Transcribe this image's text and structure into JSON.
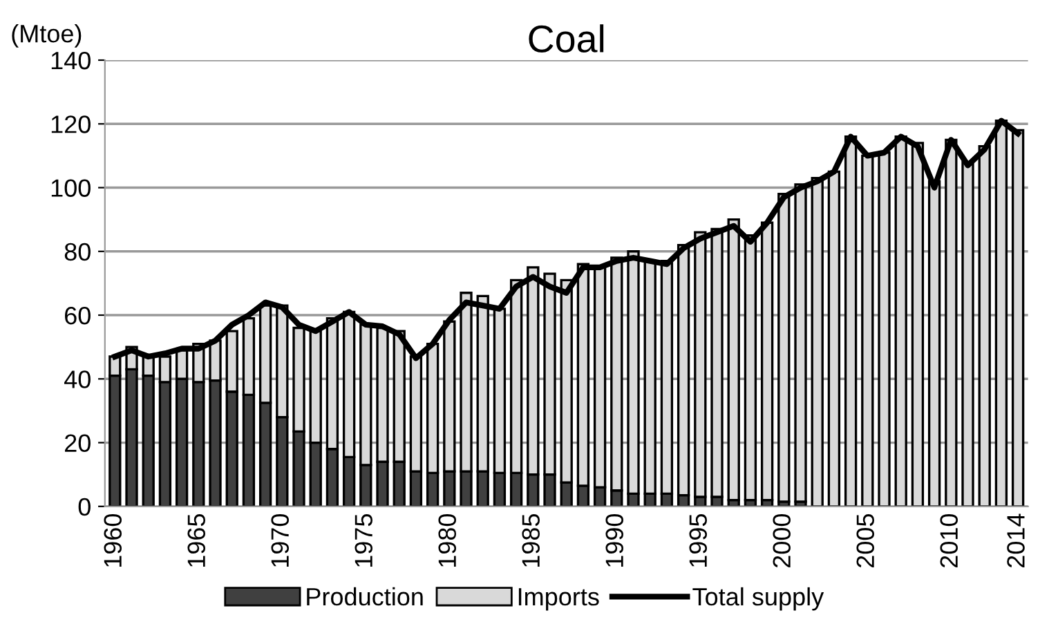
{
  "chart_data": {
    "type": "bar",
    "title": "Coal",
    "ylabel": "(Mtoe)",
    "stacked": true,
    "categories": [
      "1960",
      null,
      null,
      null,
      null,
      "1965",
      null,
      null,
      null,
      null,
      "1970",
      null,
      null,
      null,
      null,
      "1975",
      null,
      null,
      null,
      null,
      "1980",
      null,
      null,
      null,
      null,
      "1985",
      null,
      null,
      null,
      null,
      "1990",
      null,
      null,
      null,
      null,
      "1995",
      null,
      null,
      null,
      null,
      "2000",
      null,
      null,
      null,
      null,
      "2005",
      null,
      null,
      null,
      null,
      "2010",
      null,
      null,
      null,
      "2014"
    ],
    "series": [
      {
        "name": "Production",
        "color": "#404040",
        "values": [
          41,
          43,
          41,
          39,
          40,
          39,
          39.5,
          36,
          35,
          32.5,
          28,
          23.5,
          20,
          18,
          15.5,
          13,
          14,
          14,
          11,
          10.5,
          11,
          11,
          11,
          10.5,
          10.5,
          10,
          10,
          7.5,
          6.5,
          6,
          5,
          4,
          4,
          4,
          3.5,
          3,
          3,
          2,
          2,
          2,
          1.5,
          1.5,
          0,
          0,
          0,
          0,
          0,
          0,
          0,
          0,
          0,
          0,
          0,
          0,
          0
        ]
      },
      {
        "name": "Imports",
        "color": "#d9d9d9",
        "values": [
          6,
          7,
          6,
          8,
          9,
          12,
          12.5,
          19,
          24,
          30.5,
          35,
          32.5,
          35,
          41,
          45.5,
          44,
          42,
          41,
          36,
          40.5,
          47,
          56,
          55,
          51.5,
          60.5,
          65,
          63,
          63.5,
          69.5,
          69,
          73,
          76,
          73,
          73,
          78.5,
          83,
          84,
          88,
          83,
          87,
          96.5,
          99.5,
          103,
          105,
          116,
          110,
          111,
          116,
          114,
          102,
          115,
          108,
          113,
          121,
          118
        ]
      },
      {
        "name": "Total supply",
        "type": "line",
        "color": "#000000",
        "values": [
          47,
          49,
          47,
          48,
          49.5,
          49.5,
          52,
          57,
          60,
          64,
          62.5,
          57,
          55,
          58,
          61,
          57,
          56.5,
          54,
          46.5,
          51,
          58.5,
          64,
          63,
          62,
          69,
          72,
          69,
          67,
          75,
          75,
          77,
          78,
          77,
          76,
          81,
          84,
          86,
          88,
          83,
          89,
          97,
          100,
          102,
          105,
          116,
          110,
          111,
          116,
          113,
          100,
          115,
          107,
          112,
          121,
          117
        ]
      }
    ],
    "ylim": [
      0,
      140
    ],
    "yticks": [
      0,
      20,
      40,
      60,
      80,
      100,
      120,
      140
    ],
    "grid": "y",
    "legend": "bottom",
    "line_style": "solid",
    "marker": "none"
  }
}
